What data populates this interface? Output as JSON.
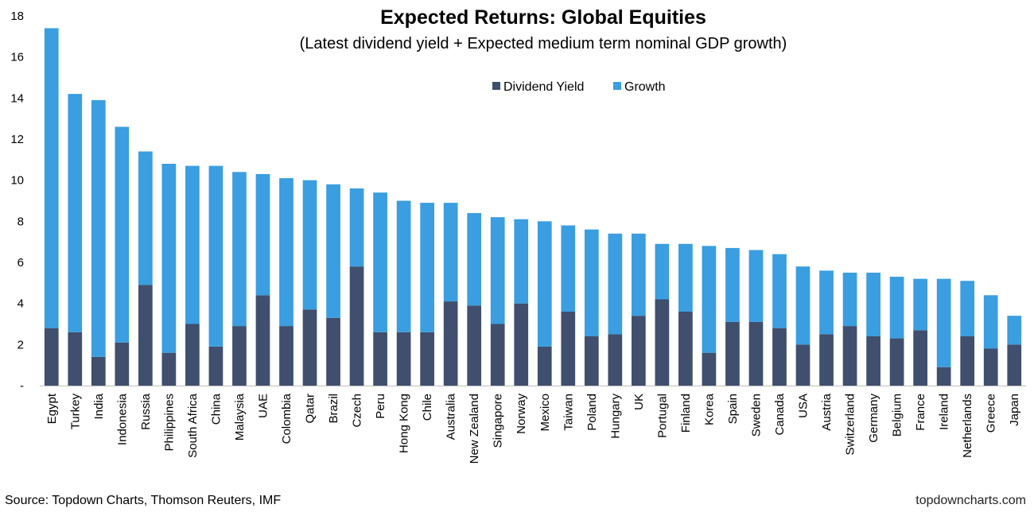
{
  "chart_data": {
    "type": "bar",
    "stacked": true,
    "title": "Expected Returns: Global Equities",
    "subtitle": "(Latest dividend yield + Expected medium term nominal GDP growth)",
    "ylim": [
      0,
      18
    ],
    "yticks": [
      "-",
      "2",
      "4",
      "6",
      "8",
      "10",
      "12",
      "14",
      "16",
      "18"
    ],
    "legend_position": "top-center",
    "categories": [
      "Egypt",
      "Turkey",
      "India",
      "Indonesia",
      "Russia",
      "Philippines",
      "South Africa",
      "China",
      "Malaysia",
      "UAE",
      "Colombia",
      "Qatar",
      "Brazil",
      "Czech",
      "Peru",
      "Hong Kong",
      "Chile",
      "Australia",
      "New Zealand",
      "Singapore",
      "Norway",
      "Mexico",
      "Taiwan",
      "Poland",
      "Hungary",
      "UK",
      "Portugal",
      "Finland",
      "Korea",
      "Spain",
      "Sweden",
      "Canada",
      "USA",
      "Austria",
      "Switzerland",
      "Germany",
      "Belgium",
      "France",
      "Ireland",
      "Netherlands",
      "Greece",
      "Japan"
    ],
    "series": [
      {
        "name": "Dividend Yield",
        "color": "#3f4f6d",
        "values": [
          2.8,
          2.6,
          1.4,
          2.1,
          4.9,
          1.6,
          3.0,
          1.9,
          2.9,
          4.4,
          2.9,
          3.7,
          3.3,
          5.8,
          2.6,
          2.6,
          2.6,
          4.1,
          3.9,
          3.0,
          4.0,
          1.9,
          3.6,
          2.4,
          2.5,
          3.4,
          4.2,
          3.6,
          1.6,
          3.1,
          3.1,
          2.8,
          2.0,
          2.5,
          2.9,
          2.4,
          2.3,
          2.7,
          0.9,
          2.4,
          1.8,
          2.0
        ]
      },
      {
        "name": "Growth",
        "color": "#3a9ee0",
        "values": [
          14.6,
          11.6,
          12.5,
          10.5,
          6.5,
          9.2,
          7.7,
          8.8,
          7.5,
          5.9,
          7.2,
          6.3,
          6.5,
          3.8,
          6.8,
          6.4,
          6.3,
          4.8,
          4.5,
          5.2,
          4.1,
          6.1,
          4.2,
          5.2,
          4.9,
          4.0,
          2.7,
          3.3,
          5.2,
          3.6,
          3.5,
          3.6,
          3.8,
          3.1,
          2.6,
          3.1,
          3.0,
          2.5,
          4.3,
          2.7,
          2.6,
          1.4
        ]
      }
    ]
  },
  "footer": {
    "source": "Source: Topdown Charts, Thomson Reuters, IMF",
    "website": "topdowncharts.com"
  }
}
